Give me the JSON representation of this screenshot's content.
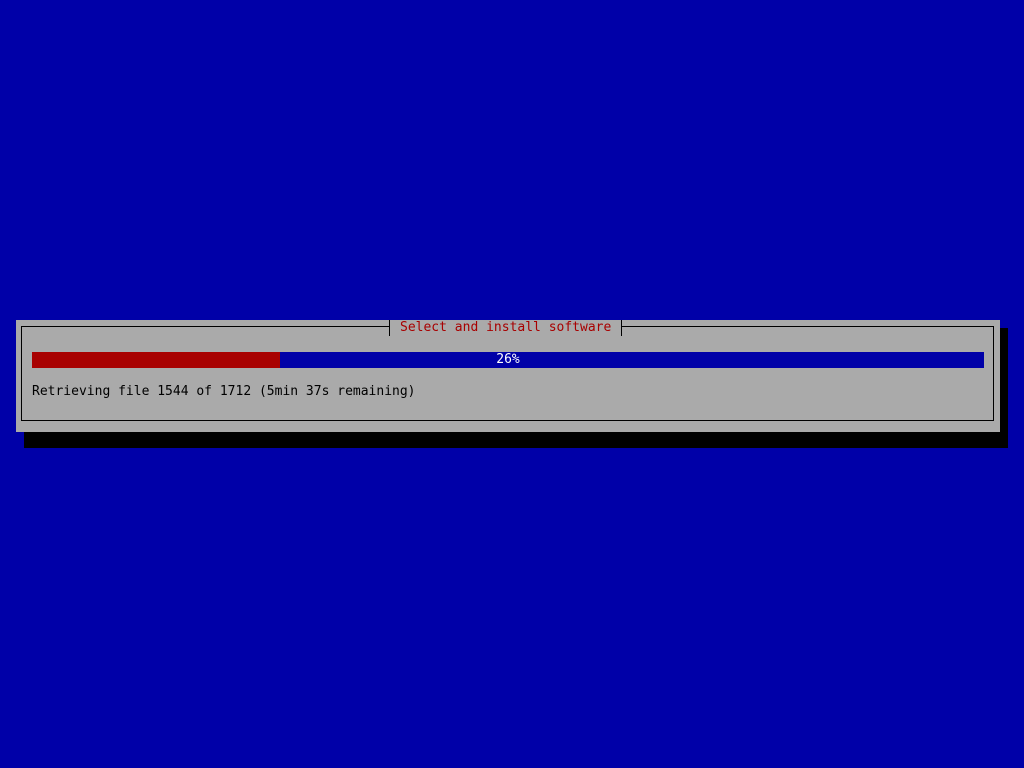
{
  "dialog": {
    "title": "Select and install software",
    "progress": {
      "percent": 26,
      "label": "26%"
    },
    "message": "Retrieving file 1544 of 1712 (5min 37s remaining)"
  },
  "colors": {
    "background": "#0000a8",
    "dialog": "#aaaaaa",
    "progress_fill": "#a80000",
    "title": "#a80000"
  }
}
